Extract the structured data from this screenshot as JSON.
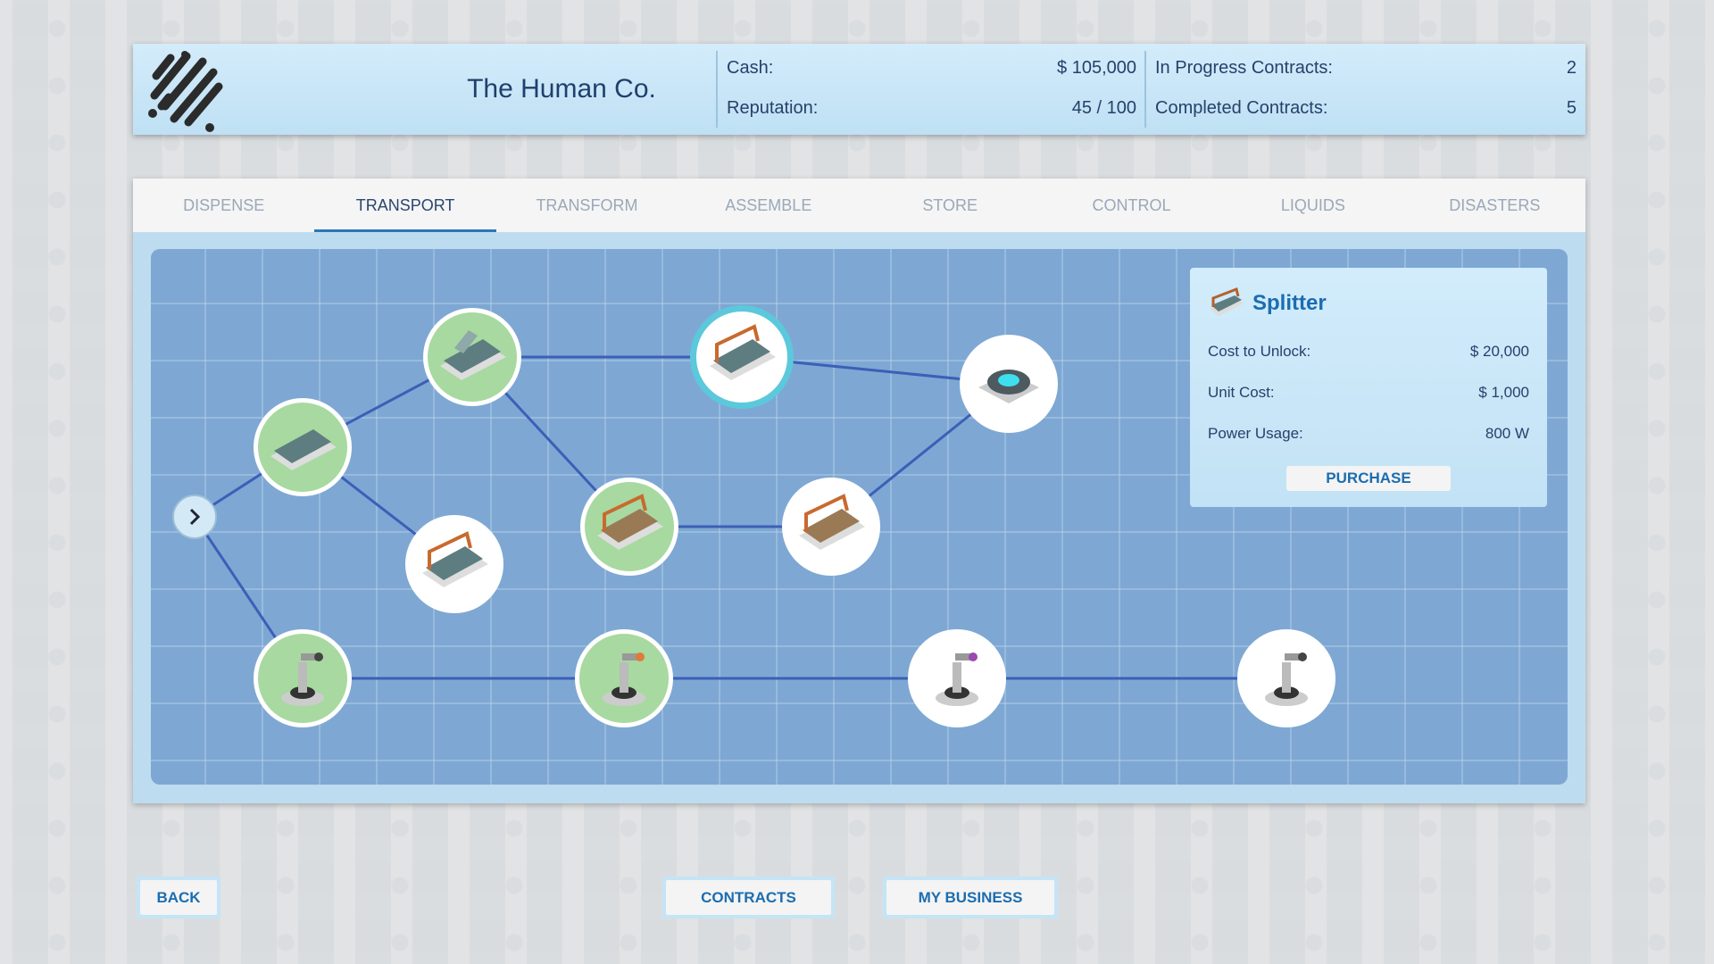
{
  "header": {
    "company_name": "The Human Co.",
    "cash_label": "Cash:",
    "cash_value": "$ 105,000",
    "reputation_label": "Reputation:",
    "reputation_value": "45 / 100",
    "in_progress_label": "In Progress Contracts:",
    "in_progress_value": "2",
    "completed_label": "Completed Contracts:",
    "completed_value": "5"
  },
  "tabs": [
    {
      "label": "DISPENSE"
    },
    {
      "label": "TRANSPORT",
      "active": true
    },
    {
      "label": "TRANSFORM"
    },
    {
      "label": "ASSEMBLE"
    },
    {
      "label": "STORE"
    },
    {
      "label": "CONTROL"
    },
    {
      "label": "LIQUIDS"
    },
    {
      "label": "DISASTERS"
    }
  ],
  "tech_tree": {
    "nodes": [
      {
        "id": "start",
        "kind": "expand-arrow"
      },
      {
        "id": "a",
        "icon": "conveyor-icon",
        "state": "unlocked"
      },
      {
        "id": "b",
        "icon": "ramp-conveyor-icon",
        "state": "unlocked"
      },
      {
        "id": "c",
        "icon": "conveyor-sensor-icon",
        "state": "locked"
      },
      {
        "id": "d",
        "icon": "sorter-icon",
        "state": "unlocked"
      },
      {
        "id": "e",
        "icon": "splitter-icon",
        "state": "selected"
      },
      {
        "id": "f",
        "icon": "merger-icon",
        "state": "locked"
      },
      {
        "id": "g",
        "icon": "turntable-icon",
        "state": "locked"
      },
      {
        "id": "h",
        "icon": "robot-arm-icon",
        "state": "unlocked"
      },
      {
        "id": "i",
        "icon": "robot-arm-orange-icon",
        "state": "unlocked"
      },
      {
        "id": "j",
        "icon": "robot-arm-purple-icon",
        "state": "locked"
      },
      {
        "id": "k",
        "icon": "robot-arm-heavy-icon",
        "state": "locked"
      }
    ],
    "edges": [
      [
        "start",
        "a"
      ],
      [
        "start",
        "h"
      ],
      [
        "a",
        "b"
      ],
      [
        "a",
        "c"
      ],
      [
        "b",
        "e"
      ],
      [
        "b",
        "d"
      ],
      [
        "e",
        "g"
      ],
      [
        "d",
        "f"
      ],
      [
        "f",
        "g"
      ],
      [
        "h",
        "i"
      ],
      [
        "i",
        "j"
      ],
      [
        "j",
        "k"
      ]
    ],
    "colors": {
      "unlocked": "#a7d9a0",
      "locked": "#ffffff",
      "selected_ring": "#5cc8dc",
      "edge": "#3c5fb8"
    }
  },
  "selected_item": {
    "icon": "splitter-icon",
    "name": "Splitter",
    "rows": [
      {
        "label": "Cost to Unlock:",
        "value": "$ 20,000"
      },
      {
        "label": "Unit Cost:",
        "value": "$ 1,000"
      },
      {
        "label": "Power Usage:",
        "value": "800 W"
      }
    ],
    "purchase_label": "PURCHASE"
  },
  "footer": {
    "back_label": "BACK",
    "contracts_label": "CONTRACTS",
    "my_business_label": "MY BUSINESS"
  }
}
